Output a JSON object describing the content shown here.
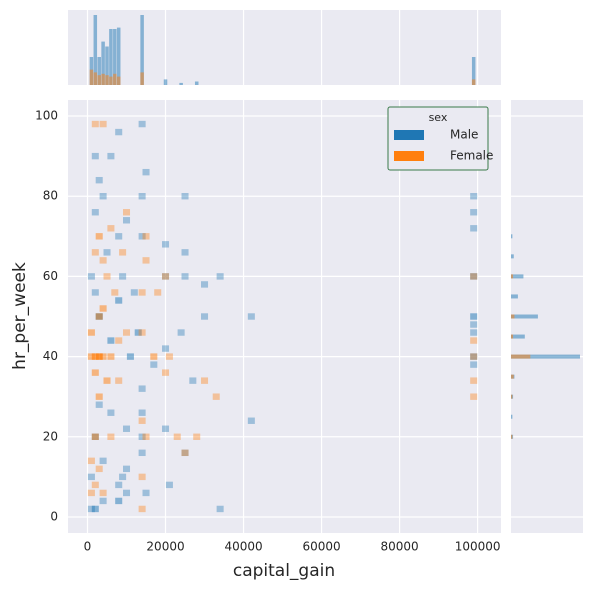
{
  "chart_data": {
    "type": "hist2d",
    "xlabel": "capital_gain",
    "ylabel": "hr_per_week",
    "xlim": [
      -5000,
      106000
    ],
    "ylim": [
      -4,
      104
    ],
    "xticks": [
      0,
      20000,
      40000,
      60000,
      80000,
      100000
    ],
    "yticks": [
      0,
      20,
      40,
      60,
      80,
      100
    ],
    "grid": true,
    "x_bin_width": 1800,
    "y_bin_width": 1.6,
    "legend": {
      "title": "sex",
      "position": "upper right"
    },
    "series": [
      {
        "name": "Male",
        "color": "#1f77b4",
        "x": [
          1000,
          2000,
          4000,
          8000,
          10000,
          8000,
          15000,
          21000,
          34000,
          1000,
          9000,
          4000,
          10000,
          14000,
          25000,
          2000,
          10000,
          14000,
          20000,
          42000,
          6000,
          14000,
          27000,
          3000,
          14000,
          17000,
          20000,
          24000,
          13000,
          34000,
          30000,
          25000,
          20000,
          25000,
          14000,
          20000,
          25000,
          14000,
          4000,
          2000,
          6000,
          8000,
          14000,
          99000,
          99000,
          99000,
          99000,
          99000,
          99000,
          99000,
          99000,
          99000,
          42000,
          30000,
          9000,
          8000,
          2000,
          6000,
          3000,
          11000,
          1000,
          5000,
          8000,
          10000,
          2000,
          3000,
          15000,
          12000
        ],
        "y": [
          2,
          2,
          4,
          4,
          6,
          8,
          6,
          8,
          2,
          10,
          10,
          14,
          12,
          16,
          16,
          20,
          22,
          20,
          22,
          24,
          26,
          26,
          34,
          28,
          32,
          38,
          42,
          46,
          46,
          60,
          58,
          60,
          60,
          66,
          70,
          68,
          80,
          80,
          80,
          90,
          90,
          96,
          98,
          80,
          76,
          72,
          60,
          50,
          46,
          40,
          38,
          48,
          50,
          50,
          60,
          54,
          56,
          44,
          50,
          40,
          60,
          66,
          70,
          74,
          76,
          84,
          86,
          56
        ],
        "values": [
          1,
          2,
          1,
          2,
          1,
          1,
          1,
          1,
          1,
          1,
          1,
          1,
          1,
          1,
          1,
          2,
          1,
          1,
          1,
          1,
          1,
          1,
          1,
          1,
          1,
          1,
          1,
          1,
          2,
          1,
          1,
          1,
          1,
          1,
          1,
          1,
          1,
          1,
          1,
          1,
          1,
          1,
          1,
          1,
          1,
          1,
          2,
          2,
          1,
          2,
          1,
          1,
          1,
          1,
          1,
          2,
          1,
          2,
          3,
          2,
          1,
          1,
          1,
          1,
          1,
          1,
          1,
          1
        ]
      },
      {
        "name": "Female",
        "color": "#ff7f0e",
        "x": [
          2000,
          4000,
          3000,
          2000,
          4000,
          1000,
          3000,
          4000,
          1000,
          2000,
          5000,
          8000,
          3000,
          6000,
          2000,
          1000,
          3000,
          2000,
          1000,
          14000,
          4000,
          15000,
          14000,
          23000,
          28000,
          25000,
          20000,
          30000,
          33000,
          14000,
          14000,
          17000,
          21000,
          15000,
          18000,
          15000,
          20000,
          3000,
          6000,
          4000,
          9000,
          99000,
          99000,
          99000,
          99000,
          99000,
          14000,
          7000,
          10000,
          8000,
          6000,
          5000,
          2000,
          10000
        ],
        "y": [
          98,
          98,
          40,
          40,
          40,
          40,
          50,
          52,
          46,
          36,
          34,
          34,
          30,
          20,
          20,
          14,
          12,
          8,
          6,
          2,
          6,
          20,
          10,
          20,
          20,
          16,
          36,
          34,
          30,
          24,
          46,
          40,
          40,
          64,
          56,
          70,
          60,
          70,
          72,
          64,
          66,
          60,
          34,
          30,
          40,
          44,
          56,
          56,
          46,
          44,
          40,
          60,
          66,
          76
        ],
        "values": [
          1,
          1,
          4,
          3,
          2,
          2,
          2,
          2,
          2,
          2,
          2,
          1,
          2,
          1,
          2,
          1,
          1,
          1,
          1,
          1,
          1,
          1,
          1,
          1,
          1,
          1,
          1,
          1,
          1,
          1,
          1,
          2,
          1,
          1,
          1,
          1,
          1,
          2,
          1,
          1,
          1,
          1,
          1,
          1,
          1,
          1,
          1,
          1,
          1,
          1,
          2,
          1,
          1,
          1
        ]
      }
    ],
    "marginal_x": {
      "ylim": [
        0,
        100
      ],
      "series": [
        {
          "name": "Male",
          "x": [
            1000,
            2000,
            3000,
            4000,
            5000,
            6000,
            7000,
            8000,
            14000,
            20000,
            24000,
            28000,
            99000
          ],
          "values": [
            40,
            100,
            40,
            62,
            55,
            80,
            80,
            82,
            100,
            8,
            3,
            5,
            40
          ]
        },
        {
          "name": "Female",
          "x": [
            1000,
            2000,
            3000,
            4000,
            5000,
            6000,
            7000,
            8000,
            14000,
            99000
          ],
          "values": [
            22,
            18,
            14,
            16,
            14,
            12,
            16,
            12,
            18,
            8
          ]
        }
      ]
    },
    "marginal_y": {
      "xlim": [
        0,
        100
      ],
      "series": [
        {
          "name": "Male",
          "y": [
            20,
            25,
            30,
            35,
            40,
            45,
            50,
            55,
            60,
            65,
            70
          ],
          "values": [
            3,
            2,
            3,
            5,
            100,
            20,
            39,
            10,
            18,
            4,
            2
          ]
        },
        {
          "name": "Female",
          "y": [
            20,
            30,
            35,
            40,
            45,
            50,
            60
          ],
          "values": [
            2,
            2,
            4,
            28,
            3,
            5,
            3
          ]
        }
      ]
    }
  }
}
